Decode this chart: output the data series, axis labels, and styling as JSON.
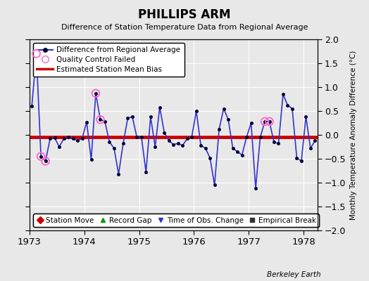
{
  "title": "PHILLIPS ARM",
  "subtitle": "Difference of Station Temperature Data from Regional Average",
  "ylabel": "Monthly Temperature Anomaly Difference (°C)",
  "xlabel_credit": "Berkeley Earth",
  "ylim": [
    -2,
    2
  ],
  "xlim": [
    1973.0,
    1978.25
  ],
  "xticks": [
    1973,
    1974,
    1975,
    1976,
    1977,
    1978
  ],
  "yticks": [
    -2,
    -1.5,
    -1,
    -0.5,
    0,
    0.5,
    1,
    1.5,
    2
  ],
  "bias_value": -0.05,
  "bg_color": "#e8e8e8",
  "main_line_color": "#3333cc",
  "bias_line_color": "#cc0000",
  "qc_color": "#ff66cc",
  "time_series": [
    [
      1973.0417,
      0.6
    ],
    [
      1973.125,
      1.7
    ],
    [
      1973.2083,
      -0.45
    ],
    [
      1973.2917,
      -0.55
    ],
    [
      1973.375,
      -0.08
    ],
    [
      1973.4583,
      -0.06
    ],
    [
      1973.5417,
      -0.25
    ],
    [
      1973.625,
      -0.08
    ],
    [
      1973.7083,
      -0.05
    ],
    [
      1973.7917,
      -0.08
    ],
    [
      1973.875,
      -0.12
    ],
    [
      1973.9583,
      -0.08
    ],
    [
      1974.0417,
      0.27
    ],
    [
      1974.125,
      -0.52
    ],
    [
      1974.2083,
      0.87
    ],
    [
      1974.2917,
      0.32
    ],
    [
      1974.375,
      0.28
    ],
    [
      1974.4583,
      -0.15
    ],
    [
      1974.5417,
      -0.28
    ],
    [
      1974.625,
      -0.82
    ],
    [
      1974.7083,
      -0.18
    ],
    [
      1974.7917,
      0.35
    ],
    [
      1974.875,
      0.38
    ],
    [
      1974.9583,
      -0.05
    ],
    [
      1975.0417,
      -0.05
    ],
    [
      1975.125,
      -0.78
    ],
    [
      1975.2083,
      0.38
    ],
    [
      1975.2917,
      -0.25
    ],
    [
      1975.375,
      0.58
    ],
    [
      1975.4583,
      0.05
    ],
    [
      1975.5417,
      -0.12
    ],
    [
      1975.625,
      -0.2
    ],
    [
      1975.7083,
      -0.18
    ],
    [
      1975.7917,
      -0.22
    ],
    [
      1975.875,
      -0.08
    ],
    [
      1975.9583,
      -0.05
    ],
    [
      1976.0417,
      0.5
    ],
    [
      1976.125,
      -0.22
    ],
    [
      1976.2083,
      -0.28
    ],
    [
      1976.2917,
      -0.48
    ],
    [
      1976.375,
      -1.05
    ],
    [
      1976.4583,
      0.12
    ],
    [
      1976.5417,
      0.55
    ],
    [
      1976.625,
      0.32
    ],
    [
      1976.7083,
      -0.28
    ],
    [
      1976.7917,
      -0.35
    ],
    [
      1976.875,
      -0.42
    ],
    [
      1976.9583,
      -0.05
    ],
    [
      1977.0417,
      0.25
    ],
    [
      1977.125,
      -1.12
    ],
    [
      1977.2083,
      -0.05
    ],
    [
      1977.2917,
      0.28
    ],
    [
      1977.375,
      0.28
    ],
    [
      1977.4583,
      -0.15
    ],
    [
      1977.5417,
      -0.18
    ],
    [
      1977.625,
      0.85
    ],
    [
      1977.7083,
      0.62
    ],
    [
      1977.7917,
      0.55
    ],
    [
      1977.875,
      -0.48
    ],
    [
      1977.9583,
      -0.55
    ],
    [
      1978.0417,
      0.38
    ],
    [
      1978.125,
      -0.28
    ],
    [
      1978.2083,
      -0.12
    ]
  ],
  "qc_failed": [
    [
      1973.125,
      1.7
    ],
    [
      1973.2083,
      -0.45
    ],
    [
      1973.2917,
      -0.55
    ],
    [
      1974.2083,
      0.87
    ],
    [
      1974.2917,
      0.32
    ],
    [
      1977.2917,
      0.28
    ],
    [
      1977.375,
      0.28
    ]
  ],
  "legend2_items": [
    {
      "label": "Station Move",
      "color": "#cc0000",
      "marker": "D"
    },
    {
      "label": "Record Gap",
      "color": "#009900",
      "marker": "^"
    },
    {
      "label": "Time of Obs. Change",
      "color": "#3333cc",
      "marker": "v"
    },
    {
      "label": "Empirical Break",
      "color": "#333333",
      "marker": "s"
    }
  ]
}
